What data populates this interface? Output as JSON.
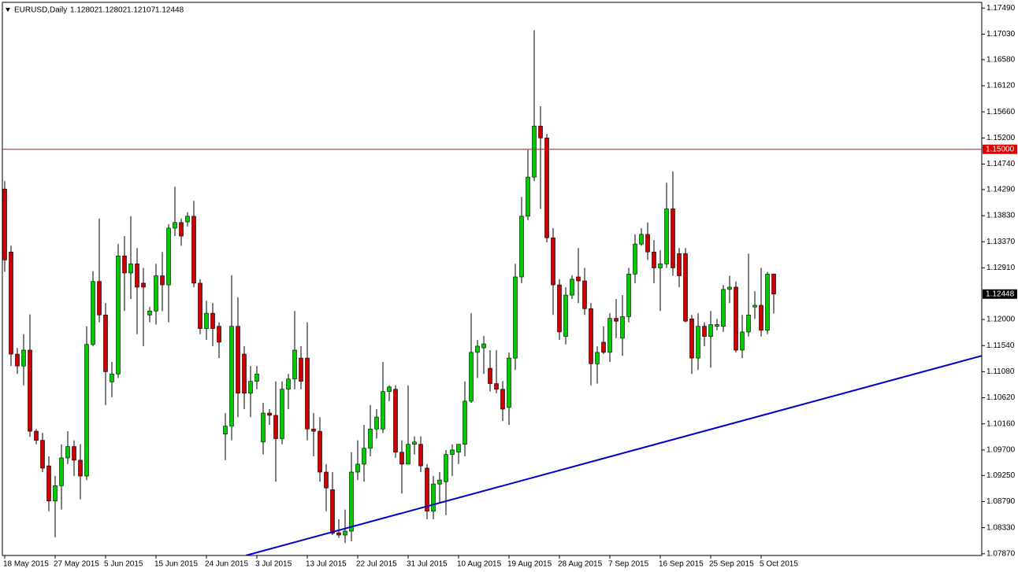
{
  "chart_data": {
    "type": "candlestick",
    "title": "EURUSD,Daily",
    "categories": [
      "18 May 2015",
      null,
      null,
      null,
      null,
      null,
      null,
      null,
      "27 May 2015",
      null,
      null,
      null,
      null,
      null,
      null,
      null,
      "5 Jun 2015",
      null,
      null,
      null,
      null,
      null,
      null,
      null,
      "15 Jun 2015",
      null,
      null,
      null,
      null,
      null,
      null,
      null,
      "24 Jun 2015",
      null,
      null,
      null,
      null,
      null,
      null,
      null,
      "3 Jul 2015",
      null,
      null,
      null,
      null,
      null,
      null,
      null,
      "13 Jul 2015",
      null,
      null,
      null,
      null,
      null,
      null,
      null,
      "22 Jul 2015",
      null,
      null,
      null,
      null,
      null,
      null,
      null,
      "31 Jul 2015",
      null,
      null,
      null,
      null,
      null,
      null,
      null,
      "10 Aug 2015",
      null,
      null,
      null,
      null,
      null,
      null,
      null,
      "19 Aug 2015",
      null,
      null,
      null,
      null,
      null,
      null,
      null,
      "28 Aug 2015",
      null,
      null,
      null,
      null,
      null,
      null,
      null,
      "7 Sep 2015",
      null,
      null,
      null,
      null,
      null,
      null,
      null,
      "16 Sep 2015",
      null,
      null,
      null,
      null,
      null,
      null,
      null,
      "25 Sep 2015",
      null,
      null,
      null,
      null,
      null,
      null,
      null,
      "5 Oct 2015",
      null,
      null
    ],
    "open": [
      1.143,
      1.1319,
      1.1139,
      1.1118,
      1.1146,
      1.1003,
      1.0987,
      1.0942,
      1.088,
      1.0907,
      1.0956,
      1.0976,
      1.0952,
      1.0924,
      1.1156,
      1.1267,
      1.1208,
      1.109,
      1.1104,
      1.1312,
      1.1282,
      1.1298,
      1.1264,
      1.1208,
      1.1215,
      1.1277,
      1.1261,
      1.1361,
      1.1371,
      1.1372,
      1.1382,
      1.1264,
      1.1184,
      1.1211,
      1.1188,
      1.0998,
      1.1012,
      1.1188,
      1.1139,
      1.107,
      1.1091,
      1.0984,
      1.1035,
      1.1031,
      1.099,
      1.1077,
      1.1095,
      1.1132,
      1.1132,
      1.1007,
      1.1003,
      1.0931,
      1.09,
      1.0824,
      1.082,
      1.0827,
      1.0931,
      1.0945,
      1.0973,
      1.1007,
      1.1007,
      1.1073,
      1.1077,
      1.0966,
      1.0945,
      1.098,
      1.098,
      1.0938,
      1.0862,
      1.091,
      1.0914,
      1.0962,
      1.0966,
      1.098,
      1.1056,
      1.1142,
      1.115,
      1.1114,
      1.1087,
      1.1077,
      1.1045,
      1.1132,
      1.1275,
      1.1382,
      1.1451,
      1.1541,
      1.152,
      1.1344,
      1.1261,
      1.117,
      1.1243,
      1.1275,
      1.1268,
      1.1219,
      1.1122,
      1.116,
      1.1142,
      1.1202,
      1.1167,
      1.1205,
      1.128,
      1.1333,
      1.135,
      1.1319,
      1.1291,
      1.1298,
      1.1395,
      1.1316,
      1.1316,
      1.1201,
      1.1132,
      1.1188,
      1.117,
      1.1188,
      1.1188,
      1.1253,
      1.1257,
      1.1146,
      1.1178,
      1.1222,
      1.1225,
      1.1181,
      1.12802
    ],
    "high": [
      1.1444,
      1.133,
      1.115,
      1.1174,
      1.1209,
      1.1007,
      1.1,
      1.0959,
      1.0924,
      1.098,
      1.1003,
      1.0987,
      1.098,
      1.1188,
      1.1285,
      1.1378,
      1.1229,
      1.1125,
      1.1333,
      1.1347,
      1.1382,
      1.1326,
      1.1291,
      1.1222,
      1.1298,
      1.1319,
      1.1368,
      1.1434,
      1.1378,
      1.1389,
      1.1409,
      1.1271,
      1.1233,
      1.1229,
      1.1195,
      1.1035,
      1.1278,
      1.1239,
      1.1153,
      1.1118,
      1.1118,
      1.1053,
      1.1042,
      1.1091,
      1.1091,
      1.1104,
      1.1215,
      1.1153,
      1.1195,
      1.1035,
      1.1028,
      1.0945,
      1.0931,
      1.0848,
      1.0865,
      1.0966,
      1.0987,
      1.1014,
      1.1049,
      1.1042,
      1.1125,
      1.1084,
      1.1084,
      1.0987,
      1.1084,
      1.0994,
      1.0994,
      1.0945,
      1.0924,
      1.0931,
      1.097,
      1.098,
      1.098,
      1.1091,
      1.1211,
      1.1164,
      1.1171,
      1.1146,
      1.1146,
      1.1091,
      1.1142,
      1.1298,
      1.1416,
      1.1499,
      1.171,
      1.1576,
      1.1527,
      1.1361,
      1.1271,
      1.1257,
      1.1278,
      1.1326,
      1.1291,
      1.1229,
      1.1153,
      1.1188,
      1.1211,
      1.1236,
      1.1243,
      1.1291,
      1.135,
      1.1361,
      1.1371,
      1.134,
      1.1322,
      1.1441,
      1.1461,
      1.1326,
      1.1326,
      1.1208,
      1.1211,
      1.1195,
      1.1215,
      1.1201,
      1.1261,
      1.1277,
      1.1267,
      1.1208,
      1.1316,
      1.125,
      1.1291,
      1.1284,
      1.12802
    ],
    "low": [
      1.1284,
      1.1118,
      1.1104,
      1.1084,
      1.0993,
      1.098,
      1.0931,
      1.0862,
      1.0816,
      1.0865,
      1.0945,
      1.0924,
      1.0883,
      1.0917,
      1.1153,
      1.1195,
      1.1049,
      1.1063,
      1.1097,
      1.1215,
      1.1236,
      1.1174,
      1.1153,
      1.1195,
      1.1191,
      1.1215,
      1.1195,
      1.1347,
      1.133,
      1.1364,
      1.1257,
      1.1174,
      1.1164,
      1.1153,
      1.1132,
      1.0952,
      1.0987,
      1.1028,
      1.1042,
      1.1028,
      1.1077,
      1.0962,
      1.1014,
      1.0914,
      1.098,
      1.1042,
      1.1077,
      1.1077,
      1.0987,
      1.0959,
      1.0914,
      1.0862,
      1.082,
      1.0815,
      1.0806,
      1.0809,
      1.0917,
      1.0914,
      1.0959,
      1.099,
      1.1,
      1.1056,
      1.0956,
      1.0893,
      1.0945,
      1.0962,
      1.0931,
      1.0848,
      1.0848,
      1.0876,
      1.0855,
      1.0924,
      1.0945,
      1.0959,
      1.1053,
      1.1097,
      1.1104,
      1.1073,
      1.107,
      1.1021,
      1.1014,
      1.1111,
      1.1264,
      1.1375,
      1.1444,
      1.1395,
      1.1336,
      1.1208,
      1.1164,
      1.1156,
      1.1236,
      1.1229,
      1.1208,
      1.1084,
      1.1087,
      1.1139,
      1.1125,
      1.1167,
      1.1136,
      1.1195,
      1.1264,
      1.133,
      1.1305,
      1.1264,
      1.1215,
      1.1291,
      1.1277,
      1.1257,
      1.1195,
      1.1104,
      1.1111,
      1.1153,
      1.1115,
      1.1181,
      1.1178,
      1.1229,
      1.1142,
      1.1132,
      1.117,
      1.1201,
      1.117,
      1.1174,
      1.12107
    ],
    "close": [
      1.1305,
      1.1139,
      1.1118,
      1.1146,
      1.1003,
      1.0987,
      1.0938,
      1.088,
      1.0907,
      1.0956,
      1.0976,
      1.0952,
      1.0924,
      1.1156,
      1.1267,
      1.1208,
      1.1108,
      1.1104,
      1.1312,
      1.1282,
      1.1298,
      1.1257,
      1.1257,
      1.1215,
      1.1277,
      1.1261,
      1.1361,
      1.1371,
      1.1347,
      1.1382,
      1.1264,
      1.1184,
      1.1211,
      1.1184,
      1.116,
      1.1012,
      1.1188,
      1.107,
      1.107,
      1.1091,
      1.1104,
      1.1035,
      1.1031,
      1.099,
      1.1077,
      1.1095,
      1.1146,
      1.1091,
      1.1007,
      1.1003,
      1.0931,
      1.0903,
      1.0823,
      1.082,
      1.0827,
      1.0931,
      1.0945,
      1.0973,
      1.1007,
      1.1028,
      1.1073,
      1.1081,
      1.0966,
      1.0945,
      1.098,
      1.0984,
      1.0942,
      1.0862,
      1.091,
      1.0917,
      1.0962,
      1.097,
      1.098,
      1.1056,
      1.1142,
      1.1153,
      1.1157,
      1.1087,
      1.1077,
      1.1042,
      1.1132,
      1.1275,
      1.1382,
      1.1451,
      1.1541,
      1.152,
      1.1344,
      1.1261,
      1.1178,
      1.1243,
      1.1271,
      1.1268,
      1.1219,
      1.1122,
      1.1142,
      1.1142,
      1.1202,
      1.1197,
      1.1205,
      1.128,
      1.1333,
      1.135,
      1.1319,
      1.1291,
      1.1298,
      1.1395,
      1.1291,
      1.1277,
      1.1197,
      1.1132,
      1.1188,
      1.117,
      1.1191,
      1.1191,
      1.1253,
      1.1257,
      1.1146,
      1.1178,
      1.1208,
      1.1225,
      1.1181,
      1.128,
      1.12448
    ],
    "up_color": "#00cc00",
    "down_color": "#cc0000",
    "ylim": [
      1.0784,
      1.1759
    ],
    "yticks": [
      {
        "value": 1.1749,
        "label": "1.17490"
      },
      {
        "value": 1.1703,
        "label": "1.17030"
      },
      {
        "value": 1.1658,
        "label": "1.16580"
      },
      {
        "value": 1.1612,
        "label": "1.16120"
      },
      {
        "value": 1.1566,
        "label": "1.15660"
      },
      {
        "value": 1.152,
        "label": "1.15200"
      },
      {
        "value": 1.1474,
        "label": "1.14740"
      },
      {
        "value": 1.1429,
        "label": "1.14290"
      },
      {
        "value": 1.1383,
        "label": "1.13830"
      },
      {
        "value": 1.1337,
        "label": "1.13370"
      },
      {
        "value": 1.1291,
        "label": "1.12910"
      },
      {
        "value": 1.12,
        "label": "1.12000"
      },
      {
        "value": 1.1154,
        "label": "1.11540"
      },
      {
        "value": 1.1108,
        "label": "1.11080"
      },
      {
        "value": 1.1062,
        "label": "1.10620"
      },
      {
        "value": 1.1016,
        "label": "1.10160"
      },
      {
        "value": 1.097,
        "label": "1.09700"
      },
      {
        "value": 1.0925,
        "label": "1.09250"
      },
      {
        "value": 1.0879,
        "label": "1.08790"
      },
      {
        "value": 1.0833,
        "label": "1.08330"
      },
      {
        "value": 1.0787,
        "label": "1.07870"
      }
    ],
    "hline": {
      "value": 1.15,
      "label": "1.15000",
      "color": "#e00000"
    },
    "last_price": 1.12448,
    "trendline": {
      "color": "#0000cc",
      "x": [
        38.25,
        155
      ],
      "y": [
        1.0784,
        1.1136
      ]
    }
  }
}
